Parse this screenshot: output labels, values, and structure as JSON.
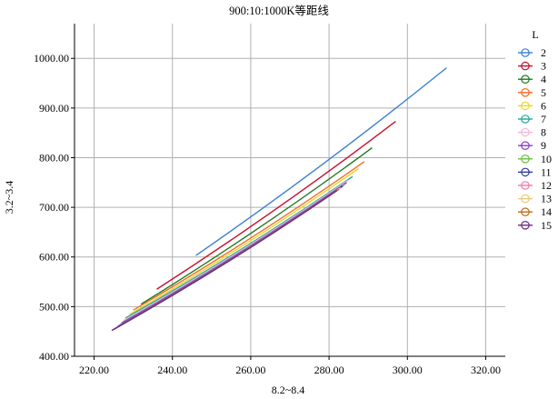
{
  "chart_data": {
    "type": "line",
    "title": "900:10:1000K等距线",
    "xlabel": "8.2~8.4",
    "ylabel": "3.2~3.4",
    "xlim": [
      215,
      325
    ],
    "ylim": [
      400,
      1070
    ],
    "x_ticks": [
      "220.00",
      "240.00",
      "260.00",
      "280.00",
      "300.00",
      "320.00"
    ],
    "x_tick_values": [
      220,
      240,
      260,
      280,
      300,
      320
    ],
    "y_ticks": [
      "400.00",
      "500.00",
      "600.00",
      "700.00",
      "800.00",
      "900.00",
      "1000.00"
    ],
    "y_tick_values": [
      400,
      500,
      600,
      700,
      800,
      900,
      1000
    ],
    "grid": true,
    "legend_title": "L",
    "legend_position": "right",
    "series": [
      {
        "name": "2",
        "color": "#3a7fd5",
        "x": [
          246,
          310
        ],
        "y": [
          603,
          981
        ]
      },
      {
        "name": "3",
        "color": "#c8102e",
        "x": [
          236,
          297
        ],
        "y": [
          535,
          873
        ]
      },
      {
        "name": "4",
        "color": "#1e7a1e",
        "x": [
          232,
          291
        ],
        "y": [
          505,
          820
        ]
      },
      {
        "name": "5",
        "color": "#f26c2a",
        "x": [
          230,
          289
        ],
        "y": [
          493,
          792
        ]
      },
      {
        "name": "6",
        "color": "#e8d820",
        "x": [
          229,
          287.5
        ],
        "y": [
          484,
          778
        ]
      },
      {
        "name": "7",
        "color": "#20a89a",
        "x": [
          228,
          286
        ],
        "y": [
          477,
          762
        ]
      },
      {
        "name": "8",
        "color": "#f2b8d8",
        "x": [
          227.5,
          285
        ],
        "y": [
          472,
          755
        ]
      },
      {
        "name": "9",
        "color": "#8a3ac8",
        "x": [
          227,
          284.5
        ],
        "y": [
          467,
          750
        ]
      },
      {
        "name": "10",
        "color": "#6cc04a",
        "x": [
          226.5,
          284
        ],
        "y": [
          463,
          746
        ]
      },
      {
        "name": "11",
        "color": "#2a3a9a",
        "x": [
          226,
          283.5
        ],
        "y": [
          460,
          743
        ]
      },
      {
        "name": "12",
        "color": "#f07ab0",
        "x": [
          225.5,
          283
        ],
        "y": [
          457,
          740
        ]
      },
      {
        "name": "13",
        "color": "#e8c880",
        "x": [
          225.2,
          282.8
        ],
        "y": [
          455,
          738
        ]
      },
      {
        "name": "14",
        "color": "#c06a20",
        "x": [
          225,
          282.5
        ],
        "y": [
          454,
          736
        ]
      },
      {
        "name": "15",
        "color": "#6a2a8a",
        "x": [
          224.5,
          282
        ],
        "y": [
          452,
          734
        ]
      }
    ]
  }
}
